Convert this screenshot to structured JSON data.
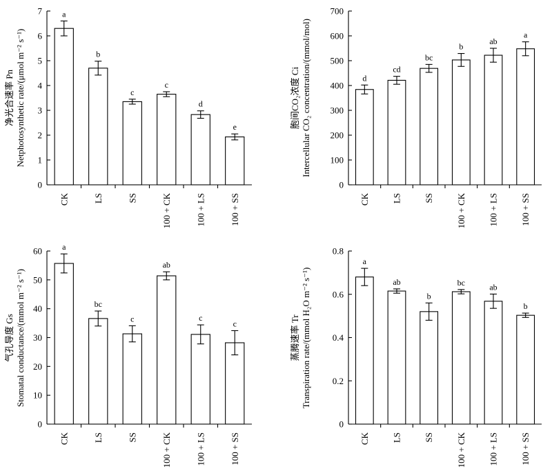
{
  "chart_data": [
    {
      "type": "bar",
      "panel": "top-left",
      "ylabel_line1": "净光合速率 Pn",
      "ylabel_line2": "Netphotosynthetic rate/(μmol m⁻² s⁻¹)",
      "ylim": [
        0,
        7
      ],
      "yticks": [
        "0",
        "1",
        "2",
        "3",
        "4",
        "5",
        "6",
        "7"
      ],
      "categories": [
        "CK",
        "LS",
        "SS",
        "100 + CK",
        "100 + LS",
        "100 + SS"
      ],
      "values": [
        6.3,
        4.7,
        3.35,
        3.65,
        2.83,
        1.93
      ],
      "errors": [
        0.3,
        0.28,
        0.1,
        0.1,
        0.15,
        0.12
      ],
      "significance": [
        "a",
        "b",
        "c",
        "c",
        "d",
        "e"
      ]
    },
    {
      "type": "bar",
      "panel": "top-right",
      "ylabel_line1": "胞间CO₂浓度 Ci",
      "ylabel_line2": "Intercellular CO₂ concentration/(mmol/mol)",
      "ylim": [
        0,
        700
      ],
      "yticks": [
        "0",
        "100",
        "200",
        "300",
        "400",
        "500",
        "600",
        "700"
      ],
      "categories": [
        "CK",
        "LS",
        "SS",
        "100 + CK",
        "100 + LS",
        "100 + SS"
      ],
      "values": [
        384,
        421,
        469,
        503,
        522,
        548
      ],
      "errors": [
        18,
        16,
        16,
        26,
        28,
        28
      ],
      "significance": [
        "d",
        "cd",
        "bc",
        "b",
        "ab",
        "a"
      ]
    },
    {
      "type": "bar",
      "panel": "bottom-left",
      "ylabel_line1": "气孔导度 Gs",
      "ylabel_line2": "Stomatal conductance/(mmol m⁻² s⁻¹)",
      "ylim": [
        0,
        60
      ],
      "yticks": [
        "0",
        "10",
        "20",
        "30",
        "40",
        "50",
        "60"
      ],
      "categories": [
        "CK",
        "LS",
        "SS",
        "100 + CK",
        "100 + LS",
        "100 + SS"
      ],
      "values": [
        55.7,
        36.6,
        31.3,
        51.4,
        31.1,
        28.2
      ],
      "errors": [
        3.3,
        2.6,
        2.8,
        1.4,
        3.3,
        4.2
      ],
      "significance": [
        "a",
        "bc",
        "c",
        "ab",
        "c",
        "c"
      ]
    },
    {
      "type": "bar",
      "panel": "bottom-right",
      "ylabel_line1": "蒸腾速率 Tr",
      "ylabel_line2": "Transpiration rate/(mmol H₂O m⁻² s⁻¹)",
      "ylim": [
        0,
        0.8
      ],
      "yticks": [
        "0",
        "0.2",
        "0.4",
        "0.6",
        "0.8"
      ],
      "categories": [
        "CK",
        "LS",
        "SS",
        "100 + CK",
        "100 + LS",
        "100 + SS"
      ],
      "values": [
        0.68,
        0.615,
        0.52,
        0.612,
        0.568,
        0.503
      ],
      "errors": [
        0.04,
        0.01,
        0.04,
        0.01,
        0.033,
        0.01
      ],
      "significance": [
        "a",
        "ab",
        "b",
        "bc",
        "ab",
        "b"
      ]
    }
  ]
}
